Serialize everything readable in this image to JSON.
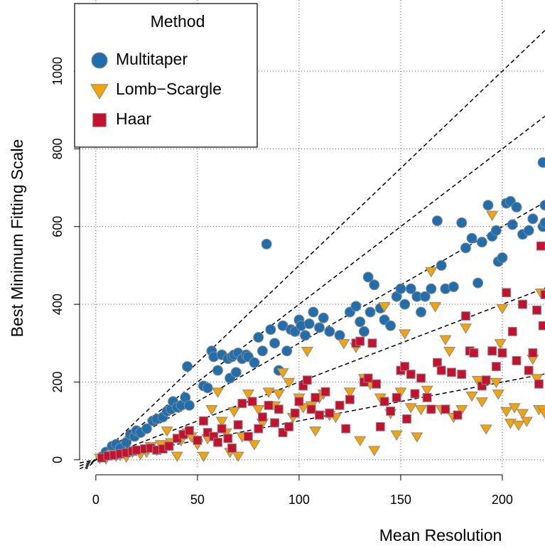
{
  "chart_data": {
    "type": "scatter",
    "x_label": "Mean Resolution",
    "y_label": "Best Minimum Fitting Scale",
    "legend_title": "Method",
    "legend_position": "top-left",
    "grid": true,
    "xlim": [
      -8,
      221
    ],
    "xticks": [
      0,
      50,
      100,
      150,
      200
    ],
    "ylim": [
      -24,
      1183
    ],
    "yticks": [
      0,
      200,
      400,
      600,
      800,
      1000
    ],
    "reference_slopes": [
      1,
      2,
      3,
      4,
      5
    ],
    "series": [
      {
        "name": "Multitaper",
        "color": "#1f6fae",
        "marker": "circle",
        "x": [
          3,
          5,
          8,
          10,
          12,
          15,
          17,
          19,
          20,
          22,
          25,
          28,
          30,
          33,
          35,
          37,
          38,
          40,
          42,
          44,
          45,
          46,
          53,
          55,
          57,
          58,
          60,
          62,
          65,
          66,
          67,
          68,
          69,
          70,
          72,
          74,
          75,
          78,
          80,
          82,
          84,
          86,
          88,
          90,
          92,
          94,
          96,
          98,
          100,
          101,
          103,
          105,
          107,
          110,
          112,
          115,
          120,
          125,
          128,
          130,
          132,
          134,
          135,
          137,
          140,
          142,
          145,
          148,
          150,
          152,
          155,
          158,
          160,
          162,
          165,
          168,
          170,
          172,
          176,
          180,
          182,
          185,
          188,
          190,
          193,
          195,
          197,
          198,
          200,
          202,
          204,
          205,
          207,
          210,
          213,
          215,
          220,
          221,
          221,
          220,
          221
        ],
        "values": [
          8,
          20,
          35,
          40,
          30,
          45,
          65,
          60,
          75,
          70,
          80,
          100,
          105,
          110,
          125,
          130,
          150,
          135,
          140,
          160,
          240,
          140,
          190,
          185,
          280,
          265,
          230,
          270,
          260,
          210,
          265,
          270,
          225,
          275,
          260,
          270,
          265,
          250,
          315,
          280,
          555,
          335,
          300,
          230,
          345,
          280,
          335,
          330,
          360,
          345,
          320,
          350,
          380,
          340,
          365,
          330,
          320,
          380,
          395,
          355,
          330,
          470,
          380,
          450,
          390,
          360,
          345,
          420,
          440,
          400,
          440,
          420,
          380,
          420,
          440,
          615,
          500,
          440,
          445,
          610,
          545,
          570,
          455,
          560,
          655,
          575,
          590,
          510,
          520,
          660,
          665,
          605,
          650,
          580,
          590,
          620,
          765,
          655,
          605,
          600,
          610
        ]
      },
      {
        "name": "Lomb−Scargle",
        "color": "#f5a300",
        "marker": "triangle-down",
        "x": [
          2,
          5,
          8,
          10,
          12,
          15,
          18,
          20,
          22,
          25,
          27,
          30,
          32,
          35,
          37,
          40,
          42,
          45,
          47,
          50,
          53,
          55,
          57,
          60,
          62,
          64,
          66,
          68,
          70,
          72,
          75,
          78,
          80,
          82,
          85,
          88,
          90,
          92,
          95,
          97,
          100,
          102,
          104,
          106,
          108,
          110,
          112,
          115,
          118,
          122,
          125,
          128,
          130,
          132,
          135,
          137,
          140,
          142,
          145,
          148,
          150,
          152,
          155,
          158,
          160,
          163,
          165,
          167,
          170,
          172,
          174,
          176,
          180,
          182,
          185,
          188,
          190,
          192,
          195,
          197,
          198,
          199,
          200,
          202,
          204,
          206,
          208,
          210,
          212,
          215,
          217,
          218,
          219,
          220,
          221
        ],
        "values": [
          5,
          3,
          15,
          10,
          12,
          8,
          20,
          25,
          15,
          20,
          35,
          25,
          40,
          75,
          45,
          10,
          50,
          70,
          60,
          40,
          10,
          55,
          130,
          175,
          100,
          70,
          20,
          125,
          10,
          60,
          170,
          40,
          130,
          95,
          175,
          140,
          170,
          225,
          200,
          110,
          160,
          135,
          280,
          140,
          75,
          160,
          170,
          115,
          110,
          300,
          175,
          290,
          50,
          210,
          195,
          25,
          160,
          395,
          120,
          65,
          175,
          325,
          135,
          60,
          130,
          180,
          485,
          395,
          130,
          310,
          280,
          110,
          130,
          340,
          165,
          205,
          150,
          80,
          630,
          200,
          170,
          300,
          390,
          125,
          95,
          135,
          90,
          120,
          100,
          260,
          210,
          130,
          430,
          130,
          120
        ]
      },
      {
        "name": "Haar",
        "color": "#c8102e",
        "marker": "square",
        "x": [
          3,
          6,
          9,
          12,
          15,
          18,
          20,
          24,
          27,
          30,
          33,
          36,
          40,
          43,
          46,
          50,
          53,
          55,
          58,
          60,
          62,
          65,
          67,
          70,
          72,
          75,
          77,
          80,
          82,
          85,
          88,
          90,
          92,
          95,
          98,
          100,
          102,
          104,
          106,
          108,
          110,
          113,
          115,
          120,
          123,
          125,
          128,
          130,
          132,
          134,
          136,
          138,
          140,
          142,
          145,
          148,
          150,
          152,
          153,
          155,
          157,
          160,
          163,
          165,
          168,
          170,
          172,
          175,
          178,
          180,
          182,
          184,
          186,
          190,
          192,
          195,
          197,
          200,
          202,
          205,
          207,
          210,
          213,
          215,
          217,
          218,
          219,
          220,
          221
        ],
        "values": [
          5,
          10,
          12,
          15,
          18,
          22,
          25,
          28,
          30,
          25,
          28,
          35,
          55,
          65,
          75,
          50,
          100,
          70,
          60,
          45,
          80,
          55,
          30,
          90,
          145,
          60,
          150,
          80,
          110,
          140,
          95,
          130,
          70,
          85,
          120,
          150,
          190,
          205,
          130,
          160,
          115,
          175,
          120,
          140,
          80,
          155,
          300,
          305,
          200,
          210,
          300,
          195,
          85,
          150,
          125,
          160,
          230,
          240,
          105,
          220,
          170,
          210,
          160,
          130,
          250,
          230,
          130,
          225,
          115,
          220,
          370,
          280,
          275,
          190,
          205,
          280,
          240,
          275,
          430,
          330,
          255,
          400,
          230,
          275,
          385,
          195,
          550,
          345,
          425
        ]
      }
    ]
  }
}
